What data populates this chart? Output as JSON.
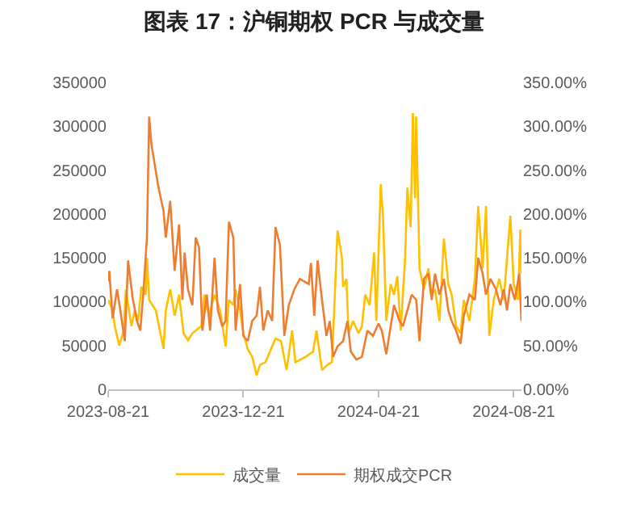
{
  "chart_data": {
    "type": "line",
    "title": "图表 17：沪铜期权 PCR 与成交量",
    "xlim": [
      "2023-08-21",
      "2024-08-28"
    ],
    "xticks": [
      "2023-08-21",
      "2023-12-21",
      "2024-04-21",
      "2024-08-21"
    ],
    "ylim": [
      0,
      350000
    ],
    "yticks": [
      0,
      50000,
      100000,
      150000,
      200000,
      250000,
      300000,
      350000
    ],
    "y2lim": [
      0,
      350
    ],
    "y2ticks": [
      {
        "value": 0,
        "label": "0.00%"
      },
      {
        "value": 50,
        "label": "50.00%"
      },
      {
        "value": 100,
        "label": "100.00%"
      },
      {
        "value": 150,
        "label": "150.00%"
      },
      {
        "value": 200,
        "label": "200.00%"
      },
      {
        "value": 250,
        "label": "250.00%"
      },
      {
        "value": 300,
        "label": "300.00%"
      },
      {
        "value": 350,
        "label": "350.00%"
      }
    ],
    "grid": false,
    "legend": "bottom",
    "marker": "none",
    "line_style": "solid",
    "series": [
      {
        "name": "成交量",
        "color": "#ffc000",
        "x": [
          "2023-08-21",
          "2023-08-25",
          "2023-08-27",
          "2023-08-31",
          "2023-09-04",
          "2023-09-06",
          "2023-09-11",
          "2023-09-14",
          "2023-09-17",
          "2023-09-20",
          "2023-09-24",
          "2023-09-25",
          "2023-09-27",
          "2023-10-03",
          "2023-10-10",
          "2023-10-12",
          "2023-10-16",
          "2023-10-20",
          "2023-10-24",
          "2023-10-28",
          "2023-11-01",
          "2023-11-05",
          "2023-11-13",
          "2023-11-16",
          "2023-11-20",
          "2023-11-25",
          "2023-11-30",
          "2023-12-05",
          "2023-12-08",
          "2023-12-12",
          "2023-12-14",
          "2023-12-18",
          "2023-12-21",
          "2023-12-25",
          "2023-12-29",
          "2024-01-02",
          "2024-01-05",
          "2024-01-10",
          "2024-01-15",
          "2024-01-19",
          "2024-01-24",
          "2024-01-29",
          "2024-02-03",
          "2024-02-06",
          "2024-02-15",
          "2024-02-22",
          "2024-02-25",
          "2024-03-01",
          "2024-03-06",
          "2024-03-10",
          "2024-03-15",
          "2024-03-19",
          "2024-03-20",
          "2024-03-23",
          "2024-03-25",
          "2024-03-29",
          "2024-04-03",
          "2024-04-06",
          "2024-04-09",
          "2024-04-13",
          "2024-04-17",
          "2024-04-19",
          "2024-04-23",
          "2024-04-25",
          "2024-04-28",
          "2024-05-02",
          "2024-05-05",
          "2024-05-08",
          "2024-05-11",
          "2024-05-15",
          "2024-05-17",
          "2024-05-20",
          "2024-05-22",
          "2024-05-24",
          "2024-05-25",
          "2024-05-28",
          "2024-06-01",
          "2024-06-05",
          "2024-06-08",
          "2024-06-11",
          "2024-06-15",
          "2024-06-19",
          "2024-06-23",
          "2024-06-26",
          "2024-06-30",
          "2024-07-04",
          "2024-07-07",
          "2024-07-12",
          "2024-07-17",
          "2024-07-20",
          "2024-07-24",
          "2024-07-27",
          "2024-07-30",
          "2024-08-03",
          "2024-08-08",
          "2024-08-12",
          "2024-08-15",
          "2024-08-18",
          "2024-08-21",
          "2024-08-25",
          "2024-08-27",
          "2024-08-28"
        ],
        "values": [
          102000,
          90000,
          72000,
          50000,
          67000,
          114000,
          72000,
          90000,
          78000,
          117000,
          108000,
          150000,
          102000,
          90000,
          46000,
          90000,
          114000,
          84000,
          108000,
          64000,
          56000,
          64000,
          72000,
          108000,
          84000,
          108000,
          90000,
          49000,
          102000,
          96000,
          114000,
          90000,
          64000,
          46000,
          37000,
          16000,
          28000,
          31000,
          46000,
          58000,
          55000,
          22000,
          67000,
          31000,
          37000,
          43000,
          67000,
          22000,
          28000,
          31000,
          181000,
          150000,
          117000,
          126000,
          64000,
          78000,
          64000,
          72000,
          108000,
          96000,
          156000,
          78000,
          234000,
          198000,
          78000,
          120000,
          108000,
          129000,
          67000,
          150000,
          230000,
          185000,
          315000,
          218000,
          311000,
          138000,
          114000,
          138000,
          108000,
          114000,
          78000,
          172000,
          120000,
          108000,
          72000,
          64000,
          102000,
          78000,
          126000,
          209000,
          138000,
          209000,
          61000,
          102000,
          126000,
          102000,
          150000,
          198000,
          120000,
          102000,
          182000,
          132000
        ]
      },
      {
        "name": "期权成交PCR",
        "color": "#ed7d31",
        "axis": "y2",
        "x": [
          "2023-08-21",
          "2023-08-22",
          "2023-08-25",
          "2023-08-29",
          "2023-09-01",
          "2023-09-05",
          "2023-09-08",
          "2023-09-12",
          "2023-09-16",
          "2023-09-19",
          "2023-09-22",
          "2023-09-25",
          "2023-09-27",
          "2023-09-29",
          "2023-10-05",
          "2023-10-10",
          "2023-10-12",
          "2023-10-16",
          "2023-10-20",
          "2023-10-24",
          "2023-10-27",
          "2023-10-29",
          "2023-11-01",
          "2023-11-05",
          "2023-11-08",
          "2023-11-11",
          "2023-11-14",
          "2023-11-18",
          "2023-11-21",
          "2023-11-25",
          "2023-11-28",
          "2023-12-02",
          "2023-12-05",
          "2023-12-08",
          "2023-12-12",
          "2023-12-14",
          "2023-12-18",
          "2023-12-21",
          "2023-12-25",
          "2023-12-29",
          "2024-01-02",
          "2024-01-05",
          "2024-01-08",
          "2024-01-12",
          "2024-01-16",
          "2024-01-19",
          "2024-01-23",
          "2024-01-27",
          "2024-01-31",
          "2024-02-05",
          "2024-02-10",
          "2024-02-18",
          "2024-02-20",
          "2024-02-23",
          "2024-02-26",
          "2024-03-01",
          "2024-03-05",
          "2024-03-08",
          "2024-03-11",
          "2024-03-15",
          "2024-03-20",
          "2024-03-24",
          "2024-03-27",
          "2024-04-01",
          "2024-04-06",
          "2024-04-11",
          "2024-04-16",
          "2024-04-21",
          "2024-04-24",
          "2024-04-28",
          "2024-05-02",
          "2024-05-05",
          "2024-05-10",
          "2024-05-13",
          "2024-05-17",
          "2024-05-21",
          "2024-05-25",
          "2024-05-28",
          "2024-06-01",
          "2024-06-05",
          "2024-06-08",
          "2024-06-11",
          "2024-06-15",
          "2024-06-19",
          "2024-06-23",
          "2024-06-26",
          "2024-06-30",
          "2024-07-04",
          "2024-07-07",
          "2024-07-12",
          "2024-07-17",
          "2024-07-20",
          "2024-07-24",
          "2024-07-27",
          "2024-07-31",
          "2024-08-05",
          "2024-08-09",
          "2024-08-12",
          "2024-08-15",
          "2024-08-18",
          "2024-08-22",
          "2024-08-26",
          "2024-08-28"
        ],
        "values": [
          123,
          135,
          81,
          114,
          90,
          55,
          147,
          105,
          78,
          67,
          114,
          173,
          311,
          280,
          233,
          203,
          173,
          215,
          135,
          188,
          102,
          156,
          114,
          96,
          173,
          162,
          67,
          108,
          67,
          150,
          90,
          72,
          78,
          191,
          173,
          67,
          120,
          61,
          55,
          78,
          84,
          117,
          67,
          90,
          78,
          185,
          165,
          61,
          96,
          114,
          126,
          120,
          144,
          84,
          147,
          102,
          61,
          78,
          37,
          49,
          55,
          78,
          43,
          34,
          37,
          67,
          61,
          75,
          67,
          40,
          72,
          96,
          78,
          72,
          90,
          108,
          102,
          55,
          126,
          132,
          102,
          132,
          108,
          126,
          90,
          78,
          67,
          52,
          84,
          108,
          102,
          150,
          132,
          108,
          126,
          114,
          96,
          114,
          90,
          120,
          102,
          132,
          78
        ]
      }
    ]
  }
}
